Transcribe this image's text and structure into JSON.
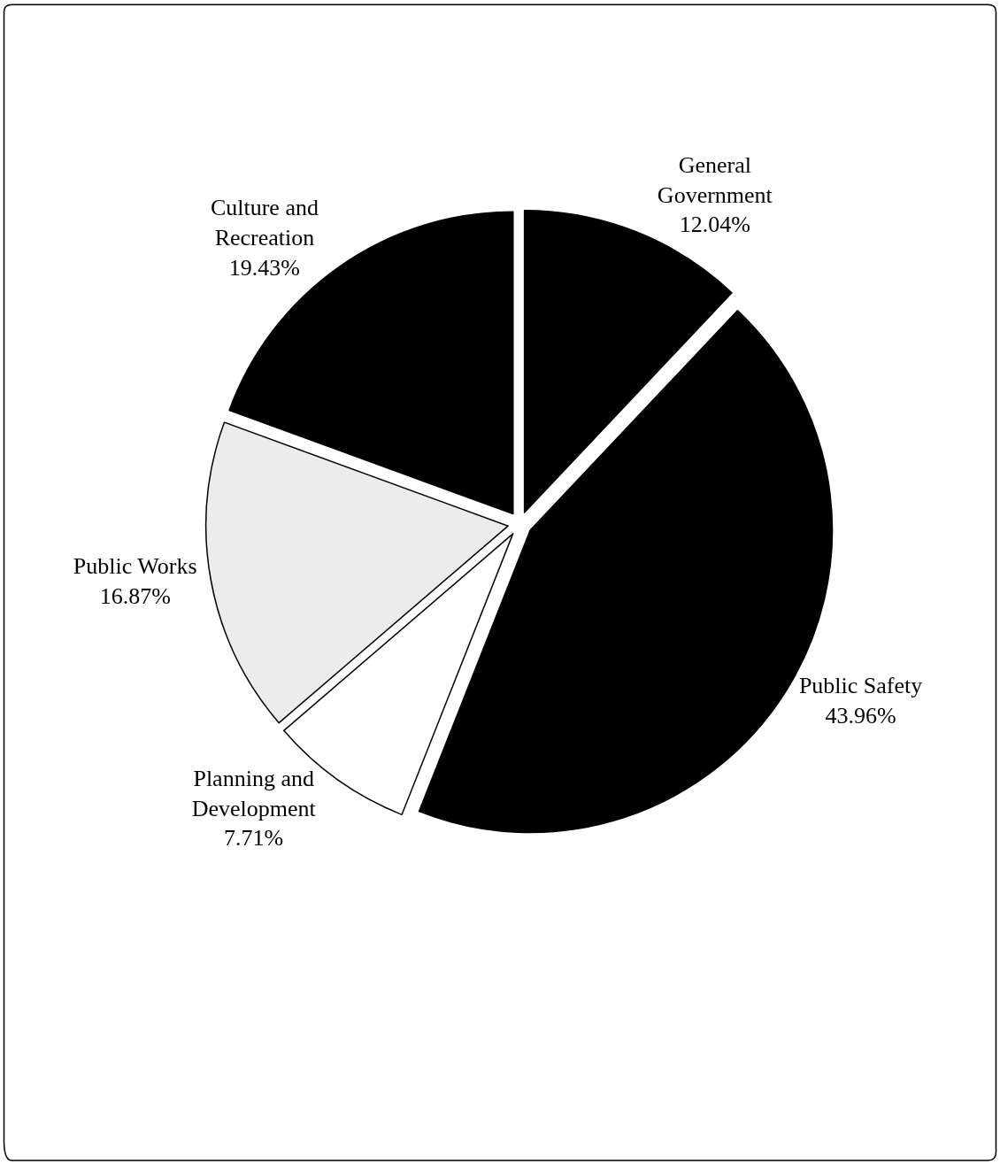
{
  "chart_data": {
    "type": "pie",
    "categories": [
      "General\nGovernment",
      "Public Safety",
      "Planning and\nDevelopment",
      "Public Works",
      "Culture and\nRecreation"
    ],
    "values": [
      12.04,
      43.96,
      7.71,
      16.87,
      19.43
    ],
    "value_labels": [
      "12.04%",
      "43.96%",
      "7.71%",
      "16.87%",
      "19.43%"
    ],
    "colors": [
      "#000000",
      "#000000",
      "#ffffff",
      "#ececec",
      "#000000"
    ],
    "legend": false
  }
}
